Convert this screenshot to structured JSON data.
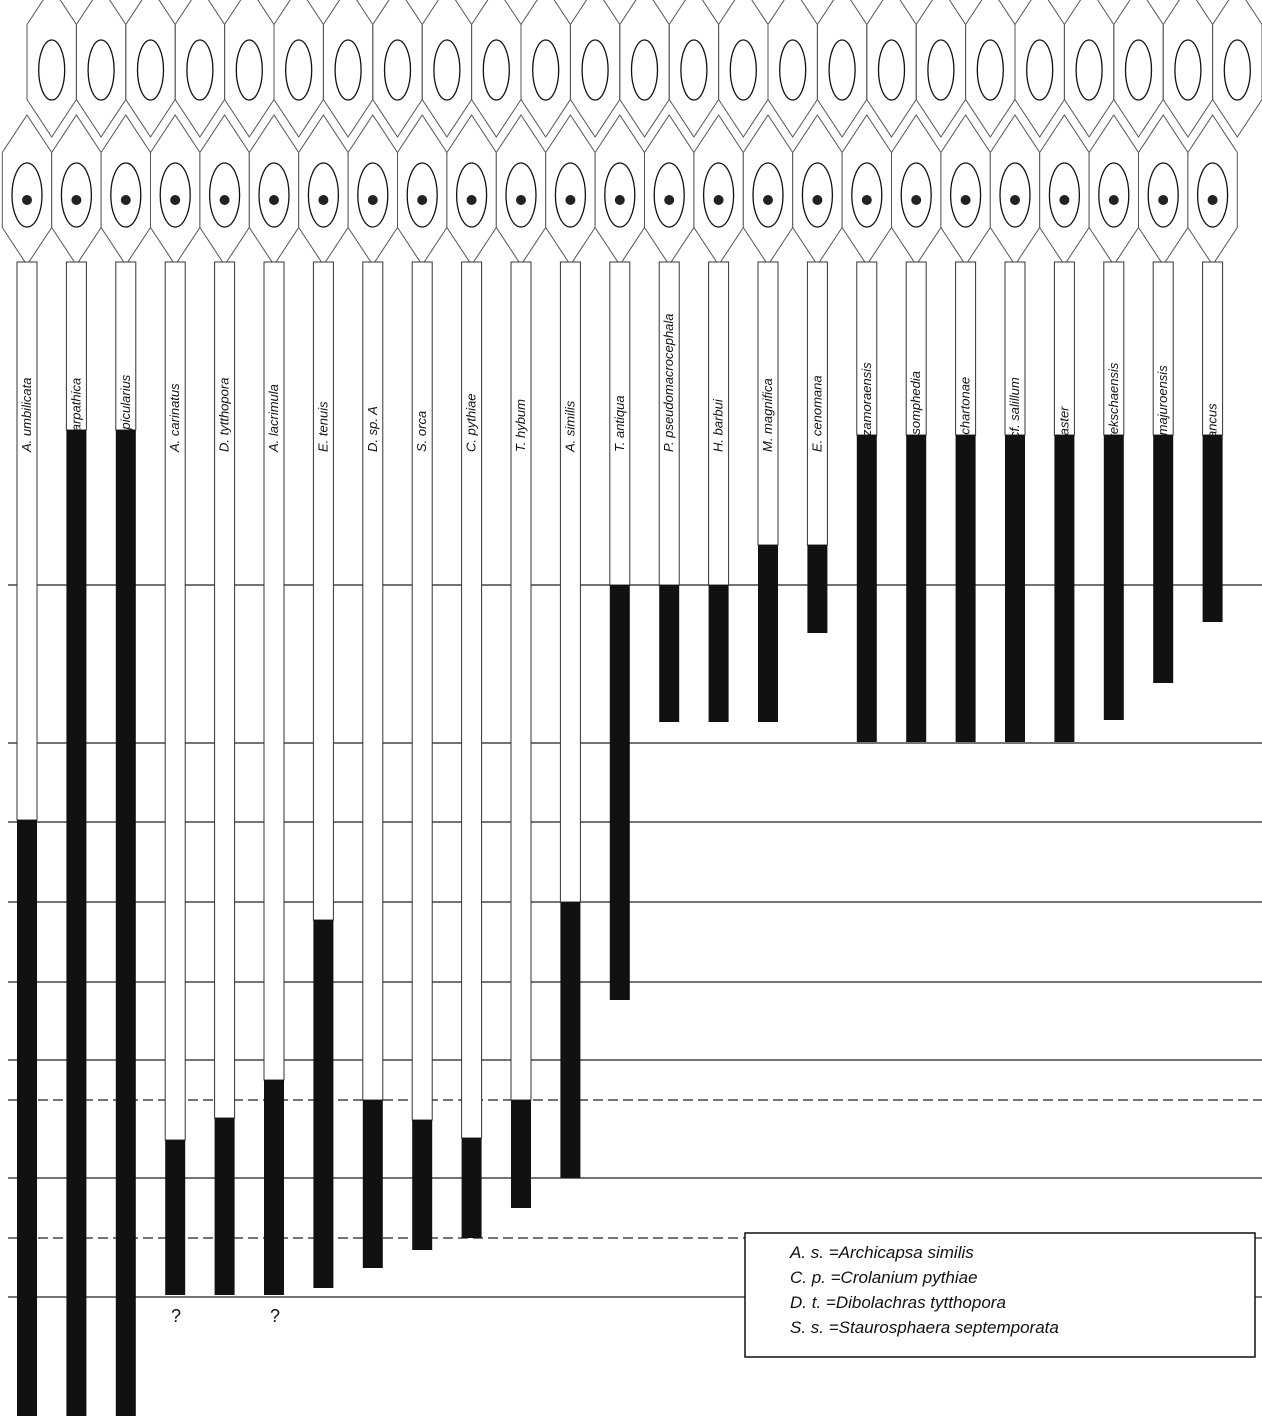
{
  "species": [
    "A. umbilicata",
    "P. carpathica",
    "X. spicularius",
    "A. carinatus",
    "D. tytthopora",
    "A. lacrimula",
    "E. tenuis",
    "D. sp. A",
    "S. orca",
    "C. pythiae",
    "T. hybum",
    "A. similis",
    "T. antiqua",
    "P. pseudomacrocephala",
    "H. barbui",
    "M. magnifica",
    "E. cenomana",
    "S. zamoraensis",
    "O. somphedia",
    "O. chartonae",
    "T. cf. salillum",
    "H. aster",
    "P. tekschaensis",
    "R. majuroensis",
    "T. ancus"
  ],
  "legend": [
    "A. s. =Archicapsa similis",
    "C. p. =Crolanium pythiae",
    "D. t. =Dibolachras tytthopora",
    "S. s. =Staurosphaera septemporata"
  ],
  "question_marks": [
    "?",
    "?"
  ]
}
